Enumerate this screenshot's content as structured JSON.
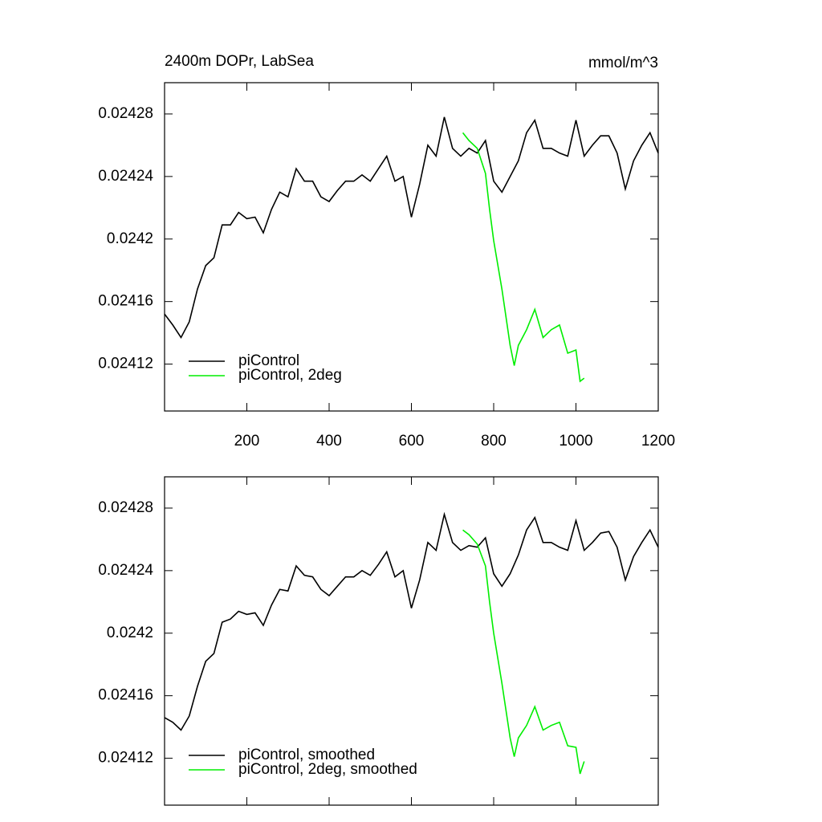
{
  "chart_data": [
    {
      "type": "line",
      "title": "2400m DOPr, LabSea",
      "units_label": "mmol/m^3",
      "xlim": [
        0,
        1200
      ],
      "xticks": [
        200,
        400,
        600,
        800,
        1000,
        1200
      ],
      "show_xtick_labels": true,
      "ylim": [
        0.02409,
        0.0243
      ],
      "yticks": [
        0.02412,
        0.02416,
        0.0242,
        0.02424,
        0.02428
      ],
      "legend": "lower left",
      "series": [
        {
          "name": "piControl",
          "color": "#000000",
          "x": [
            0,
            20,
            40,
            60,
            80,
            100,
            120,
            140,
            160,
            180,
            200,
            220,
            240,
            260,
            280,
            300,
            320,
            340,
            360,
            380,
            400,
            420,
            440,
            460,
            480,
            500,
            520,
            540,
            560,
            580,
            600,
            620,
            640,
            660,
            680,
            700,
            720,
            740,
            760,
            780,
            800,
            820,
            840,
            860,
            880,
            900,
            920,
            940,
            960,
            980,
            1000,
            1020,
            1040,
            1060,
            1080,
            1100,
            1120,
            1140,
            1160,
            1180,
            1200
          ],
          "values": [
            0.024152,
            0.024145,
            0.024137,
            0.024147,
            0.024168,
            0.024183,
            0.024188,
            0.024209,
            0.024209,
            0.024217,
            0.024213,
            0.024214,
            0.024204,
            0.024219,
            0.02423,
            0.024227,
            0.024245,
            0.024237,
            0.024237,
            0.024227,
            0.024224,
            0.024231,
            0.024237,
            0.024237,
            0.024241,
            0.024237,
            0.024245,
            0.024253,
            0.024237,
            0.02424,
            0.024214,
            0.024235,
            0.02426,
            0.024253,
            0.024278,
            0.024258,
            0.024253,
            0.024258,
            0.024255,
            0.024263,
            0.024237,
            0.02423,
            0.02424,
            0.02425,
            0.024268,
            0.024276,
            0.024258,
            0.024258,
            0.024255,
            0.024253,
            0.024276,
            0.024253,
            0.02426,
            0.024266,
            0.024266,
            0.024255,
            0.024232,
            0.02425,
            0.02426,
            0.024268,
            0.024255
          ]
        },
        {
          "name": "piControl, 2deg",
          "color": "#00ee00",
          "x": [
            725,
            740,
            760,
            780,
            790,
            800,
            820,
            840,
            850,
            860,
            880,
            900,
            920,
            940,
            960,
            980,
            1000,
            1010,
            1020
          ],
          "values": [
            0.024268,
            0.024263,
            0.024258,
            0.024242,
            0.024219,
            0.024199,
            0.024168,
            0.024132,
            0.024119,
            0.024132,
            0.024142,
            0.024155,
            0.024137,
            0.024142,
            0.024145,
            0.024127,
            0.024129,
            0.024109,
            0.024111
          ]
        }
      ]
    },
    {
      "type": "line",
      "xlim": [
        0,
        1200
      ],
      "xticks": [
        200,
        400,
        600,
        800,
        1000,
        1200
      ],
      "show_xtick_labels": false,
      "ylim": [
        0.02409,
        0.0243
      ],
      "yticks": [
        0.02412,
        0.02416,
        0.0242,
        0.02424,
        0.02428
      ],
      "legend": "lower left",
      "series": [
        {
          "name": "piControl, smoothed",
          "color": "#000000",
          "x": [
            0,
            20,
            40,
            60,
            80,
            100,
            120,
            140,
            160,
            180,
            200,
            220,
            240,
            260,
            280,
            300,
            320,
            340,
            360,
            380,
            400,
            420,
            440,
            460,
            480,
            500,
            520,
            540,
            560,
            580,
            600,
            620,
            640,
            660,
            680,
            700,
            720,
            740,
            760,
            780,
            800,
            820,
            840,
            860,
            880,
            900,
            920,
            940,
            960,
            980,
            1000,
            1020,
            1040,
            1060,
            1080,
            1100,
            1120,
            1140,
            1160,
            1180,
            1200
          ],
          "values": [
            0.024146,
            0.024143,
            0.024138,
            0.024147,
            0.024166,
            0.024182,
            0.024187,
            0.024207,
            0.024209,
            0.024214,
            0.024212,
            0.024213,
            0.024205,
            0.024218,
            0.024228,
            0.024227,
            0.024243,
            0.024237,
            0.024236,
            0.024228,
            0.024224,
            0.02423,
            0.024236,
            0.024236,
            0.02424,
            0.024237,
            0.024244,
            0.024252,
            0.024236,
            0.02424,
            0.024216,
            0.024234,
            0.024258,
            0.024253,
            0.024276,
            0.024258,
            0.024253,
            0.024256,
            0.024255,
            0.024261,
            0.024238,
            0.02423,
            0.024238,
            0.02425,
            0.024266,
            0.024274,
            0.024258,
            0.024258,
            0.024255,
            0.024253,
            0.024272,
            0.024253,
            0.024258,
            0.024264,
            0.024265,
            0.024255,
            0.024234,
            0.024249,
            0.024258,
            0.024266,
            0.024255
          ]
        },
        {
          "name": "piControl, 2deg, smoothed",
          "color": "#00ee00",
          "x": [
            725,
            740,
            760,
            780,
            790,
            800,
            820,
            840,
            850,
            860,
            880,
            900,
            920,
            940,
            960,
            980,
            1000,
            1010,
            1020
          ],
          "values": [
            0.024266,
            0.024263,
            0.024257,
            0.024243,
            0.02422,
            0.0242,
            0.024168,
            0.024133,
            0.024121,
            0.024133,
            0.024141,
            0.024153,
            0.024138,
            0.024141,
            0.024143,
            0.024128,
            0.024127,
            0.02411,
            0.024118
          ]
        }
      ]
    }
  ]
}
